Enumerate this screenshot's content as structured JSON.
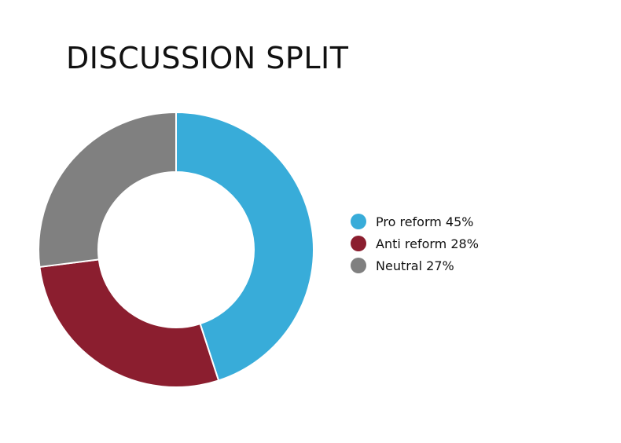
{
  "chart_data": {
    "type": "pie",
    "title": "DISCUSSION SPLIT",
    "series": [
      {
        "name": "Pro reform",
        "value": 45,
        "color": "#38acd9"
      },
      {
        "name": "Anti reform",
        "value": 28,
        "color": "#8b1e2f"
      },
      {
        "name": "Neutral",
        "value": 27,
        "color": "#808080"
      }
    ],
    "legend": {
      "placement": "right",
      "items": [
        {
          "label": "Pro reform 45%",
          "color": "#38acd9"
        },
        {
          "label": "Anti reform 28%",
          "color": "#8b1e2f"
        },
        {
          "label": "Neutral 27%",
          "color": "#808080"
        }
      ]
    }
  }
}
